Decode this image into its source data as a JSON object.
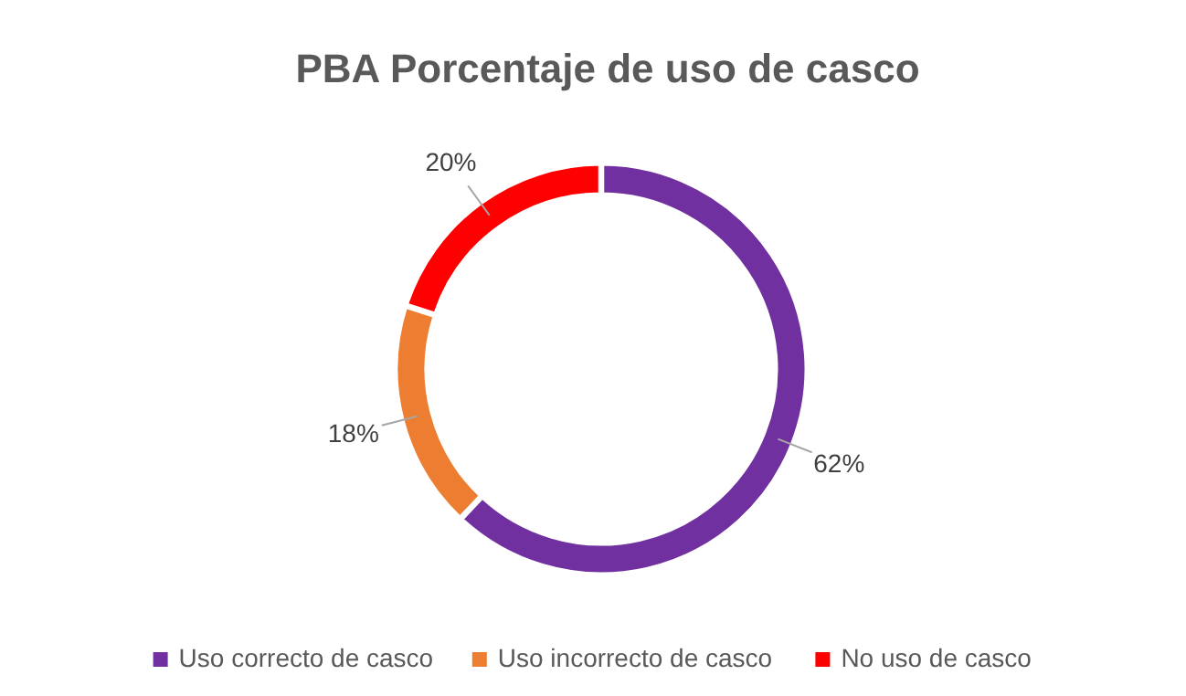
{
  "chart_data": {
    "type": "donut",
    "title": "PBA Porcentaje de uso de casco",
    "categories": [
      "Uso correcto de casco",
      "Uso incorrecto de casco",
      "No uso de casco"
    ],
    "values": [
      62,
      18,
      20
    ],
    "colors": [
      "#7030a0",
      "#ed7d31",
      "#ff0000"
    ],
    "value_labels": [
      "62%",
      "18%",
      "20%"
    ],
    "legend": "bottom"
  }
}
